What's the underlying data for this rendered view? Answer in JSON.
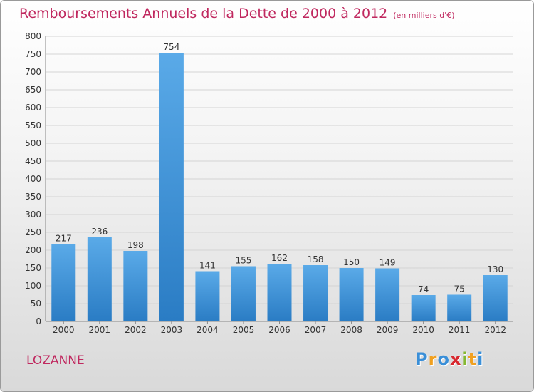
{
  "header": {
    "title": "Remboursements Annuels de la Dette de 2000 à 2012",
    "unit": "(en milliers d'€)"
  },
  "footer": {
    "city": "LOZANNE",
    "brand": "Proxiti",
    "brand_letters": [
      {
        "ch": "P",
        "color": "#3a8fd8"
      },
      {
        "ch": "r",
        "color": "#f0a020"
      },
      {
        "ch": "o",
        "color": "#3a8fd8"
      },
      {
        "ch": "x",
        "color": "#d8292f"
      },
      {
        "ch": "i",
        "color": "#86b832"
      },
      {
        "ch": "t",
        "color": "#f0a020"
      },
      {
        "ch": "i",
        "color": "#3a8fd8"
      }
    ]
  },
  "colors": {
    "title": "#c0285f",
    "bar_top": "#5aaae8",
    "bar_bottom": "#2a7cc4",
    "grid": "#d4d4d4",
    "axis_text": "#333333"
  },
  "chart_data": {
    "type": "bar",
    "title": "Remboursements Annuels de la Dette de 2000 à 2012",
    "ylim": [
      0,
      800
    ],
    "ytick_step": 50,
    "grid": true,
    "categories": [
      "2000",
      "2001",
      "2002",
      "2003",
      "2004",
      "2005",
      "2006",
      "2007",
      "2008",
      "2009",
      "2010",
      "2011",
      "2012"
    ],
    "values": [
      217,
      236,
      198,
      754,
      141,
      155,
      162,
      158,
      150,
      149,
      74,
      75,
      130
    ]
  }
}
